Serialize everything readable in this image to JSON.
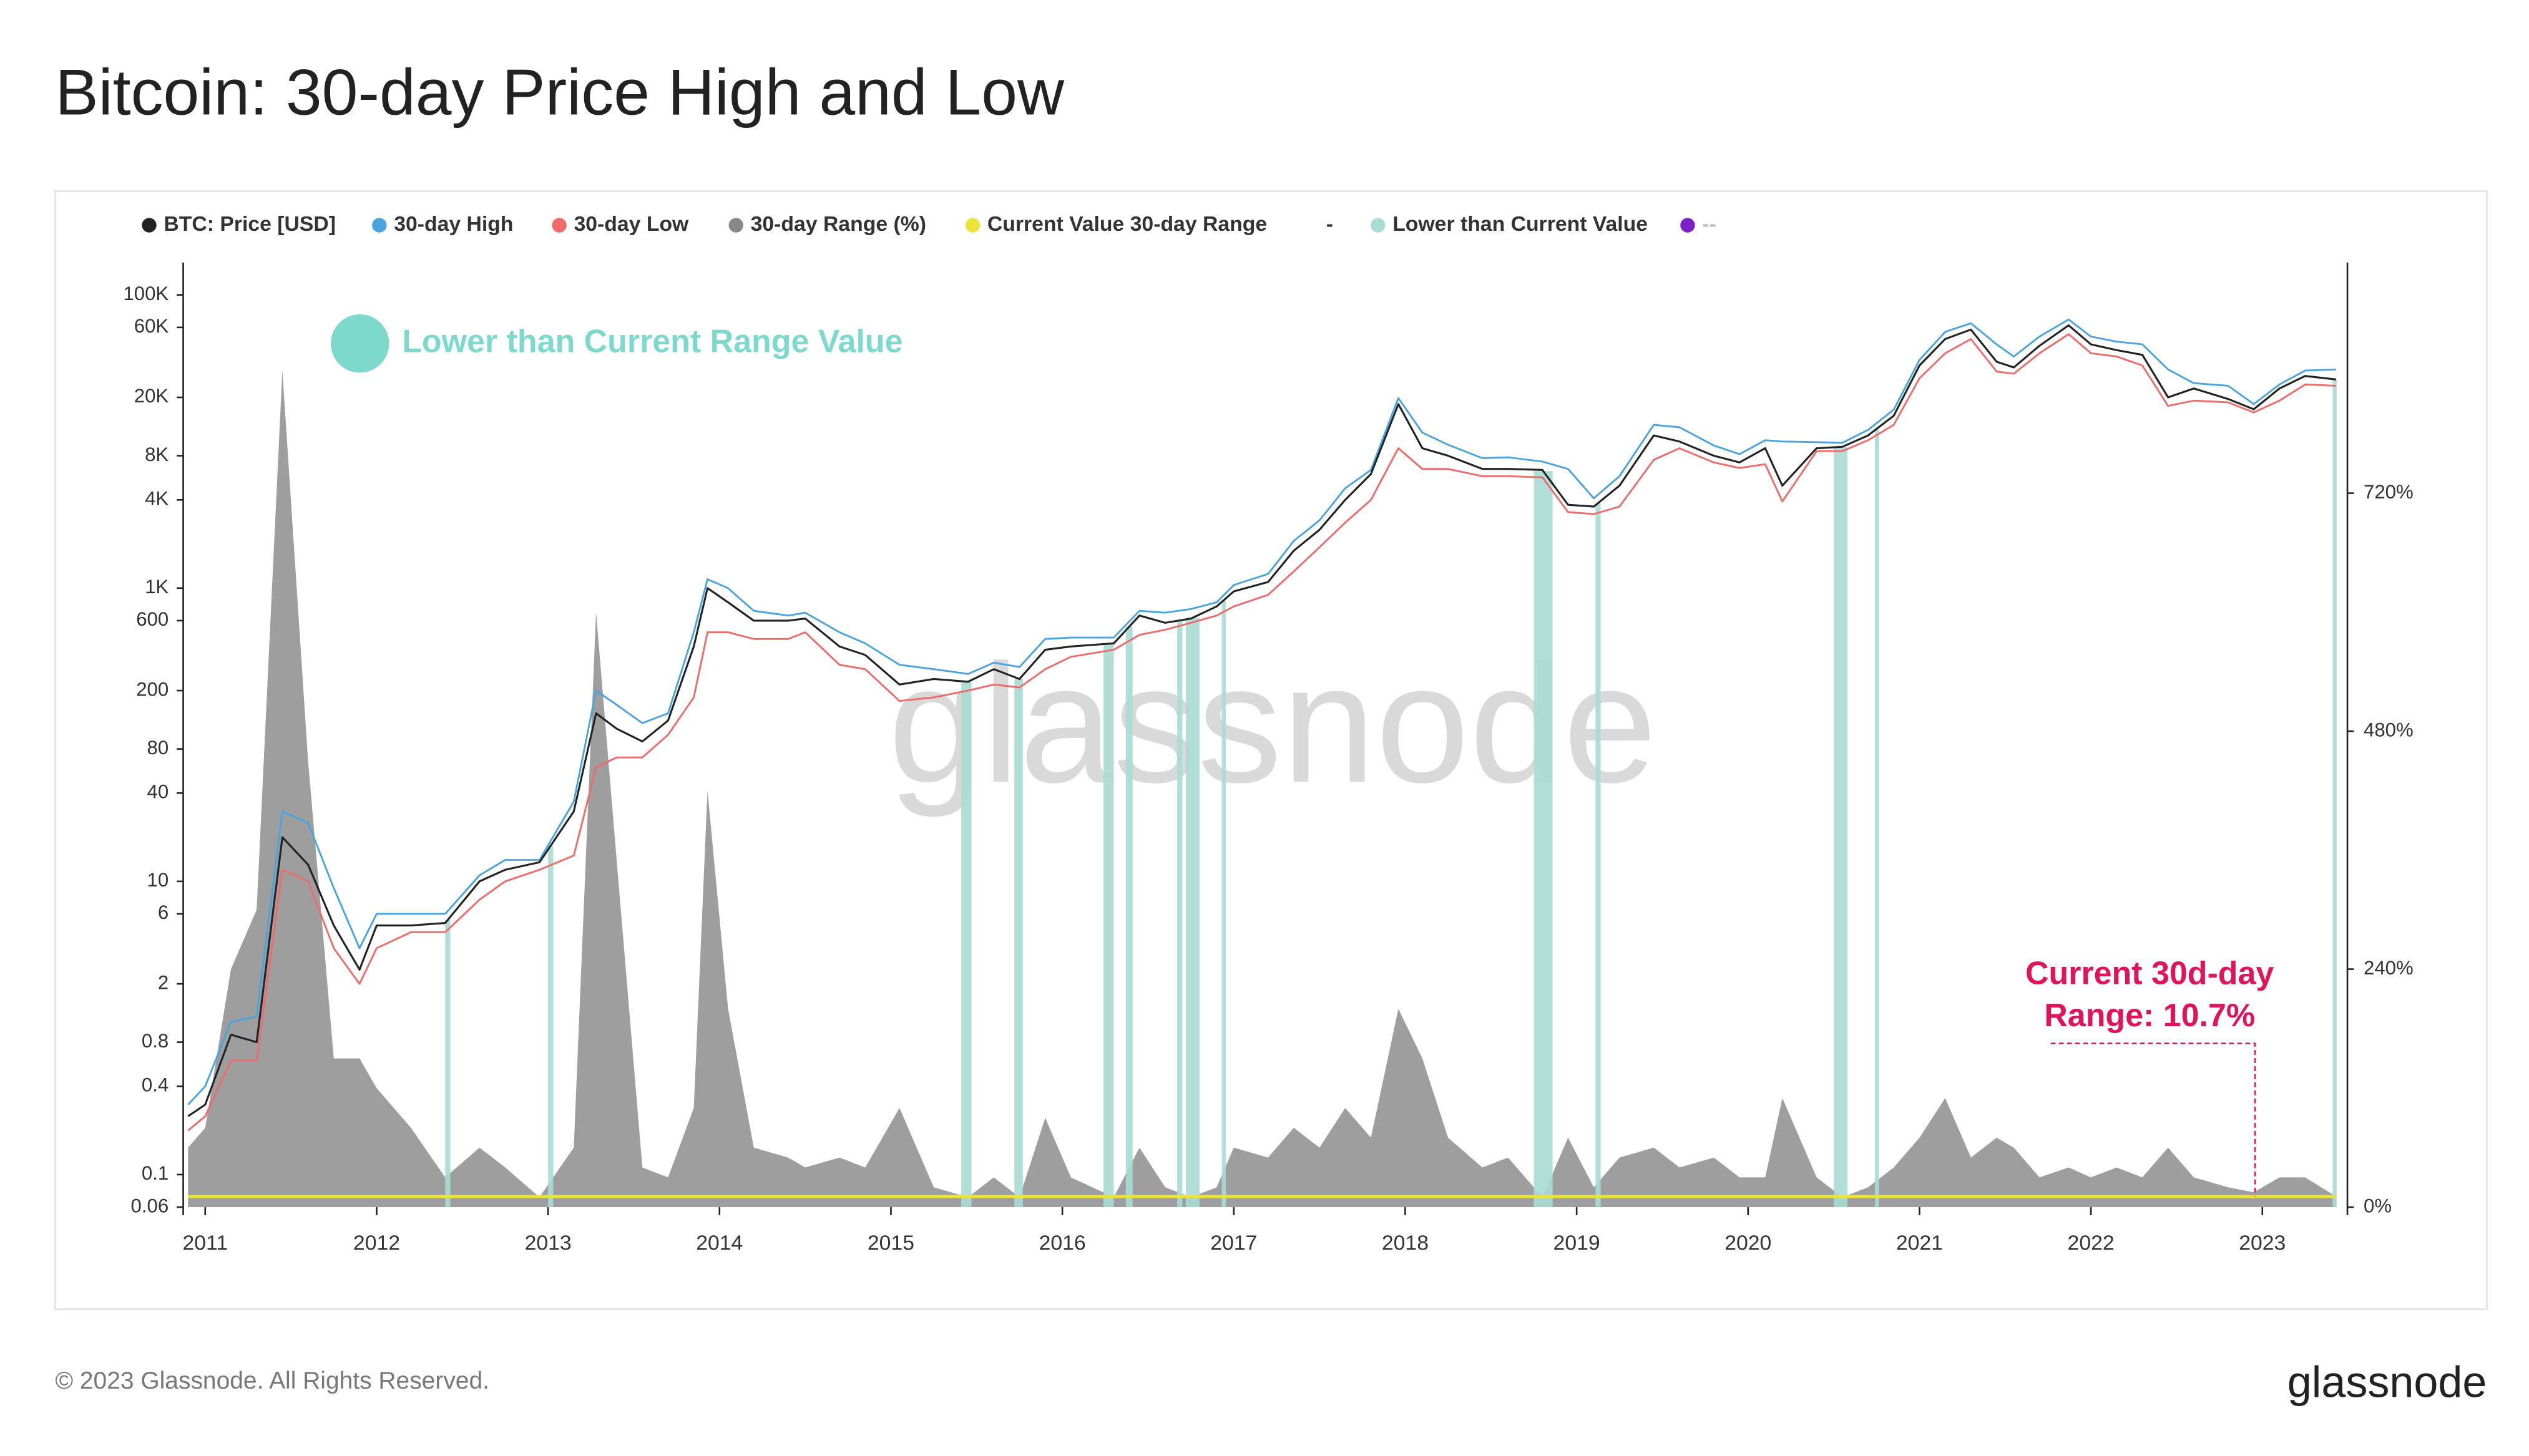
{
  "chart_data": {
    "type": "line",
    "title": "Bitcoin: 30-day Price High and Low",
    "watermark": "glassnode",
    "legend_note": "Lower than Current Range Value",
    "annotation": [
      "Current 30d-day",
      "Range: 10.7%"
    ],
    "x": [
      2010.9,
      2011.0,
      2011.15,
      2011.3,
      2011.45,
      2011.6,
      2011.75,
      2011.9,
      2012.0,
      2012.2,
      2012.4,
      2012.6,
      2012.75,
      2012.95,
      2013.15,
      2013.28,
      2013.4,
      2013.55,
      2013.7,
      2013.85,
      2013.93,
      2014.05,
      2014.2,
      2014.4,
      2014.5,
      2014.7,
      2014.85,
      2015.05,
      2015.25,
      2015.45,
      2015.6,
      2015.75,
      2015.9,
      2016.05,
      2016.3,
      2016.45,
      2016.6,
      2016.75,
      2016.9,
      2017.0,
      2017.2,
      2017.35,
      2017.5,
      2017.65,
      2017.8,
      2017.96,
      2018.1,
      2018.25,
      2018.45,
      2018.6,
      2018.8,
      2018.95,
      2019.1,
      2019.25,
      2019.45,
      2019.6,
      2019.8,
      2019.95,
      2020.1,
      2020.2,
      2020.4,
      2020.55,
      2020.7,
      2020.85,
      2021.0,
      2021.15,
      2021.3,
      2021.45,
      2021.55,
      2021.7,
      2021.87,
      2022.0,
      2022.15,
      2022.3,
      2022.45,
      2022.6,
      2022.8,
      2022.95,
      2023.1,
      2023.25,
      2023.43
    ],
    "series": [
      {
        "name": "BTC: Price [USD]",
        "color": "#222222",
        "values": [
          0.25,
          0.3,
          0.9,
          0.8,
          20,
          13,
          5,
          2.5,
          5,
          5,
          5.2,
          10,
          12,
          13.5,
          30,
          140,
          110,
          90,
          125,
          400,
          1000,
          800,
          600,
          600,
          620,
          400,
          350,
          220,
          240,
          230,
          280,
          240,
          380,
          400,
          420,
          650,
          580,
          620,
          750,
          950,
          1100,
          1800,
          2500,
          4000,
          6000,
          18000,
          9000,
          8000,
          6500,
          6500,
          6400,
          3700,
          3600,
          5000,
          11000,
          10000,
          8000,
          7200,
          9000,
          5000,
          9000,
          9200,
          11000,
          15000,
          33000,
          50000,
          58000,
          35000,
          32000,
          45000,
          62000,
          46000,
          42000,
          39000,
          20000,
          23000,
          19500,
          16600,
          23000,
          28000,
          26500
        ]
      },
      {
        "name": "30-day High",
        "color": "#4aa3df",
        "values": [
          0.3,
          0.4,
          1.1,
          1.2,
          30,
          25,
          9,
          3.5,
          6,
          6,
          6,
          11,
          14,
          14,
          35,
          200,
          160,
          120,
          140,
          500,
          1150,
          1000,
          700,
          650,
          680,
          500,
          420,
          300,
          280,
          260,
          310,
          290,
          450,
          460,
          460,
          700,
          680,
          720,
          800,
          1050,
          1250,
          2100,
          2900,
          4800,
          6400,
          19800,
          11500,
          9500,
          7700,
          7800,
          7300,
          6500,
          4100,
          5800,
          13000,
          12500,
          9400,
          8200,
          10200,
          10000,
          9900,
          9800,
          12000,
          16500,
          36000,
          56000,
          64000,
          46000,
          38000,
          52000,
          68000,
          52000,
          48000,
          46000,
          31000,
          25000,
          24000,
          18000,
          24500,
          30500,
          31000
        ]
      },
      {
        "name": "30-day Low",
        "color": "#f06a6a",
        "values": [
          0.2,
          0.25,
          0.6,
          0.6,
          12,
          10,
          3.5,
          2,
          3.5,
          4.5,
          4.5,
          7.5,
          10,
          12,
          15,
          60,
          70,
          70,
          100,
          180,
          500,
          500,
          450,
          450,
          500,
          300,
          280,
          170,
          180,
          200,
          220,
          210,
          280,
          340,
          380,
          480,
          520,
          580,
          650,
          750,
          900,
          1300,
          1900,
          2800,
          4000,
          9000,
          6500,
          6500,
          5800,
          5800,
          5700,
          3300,
          3200,
          3600,
          7500,
          9000,
          7200,
          6600,
          7000,
          3900,
          8600,
          8600,
          10200,
          13000,
          27000,
          40000,
          50000,
          30000,
          29000,
          40000,
          54000,
          40000,
          38000,
          33000,
          17500,
          19000,
          18500,
          15800,
          19000,
          24500,
          24000
        ]
      },
      {
        "name": "30-day Range (%)",
        "color": "#999999",
        "axis": "y2",
        "values": [
          60,
          80,
          240,
          300,
          844,
          450,
          150,
          150,
          120,
          80,
          30,
          60,
          40,
          10,
          60,
          600,
          350,
          40,
          30,
          100,
          420,
          200,
          60,
          50,
          40,
          50,
          40,
          100,
          20,
          10,
          30,
          10,
          90,
          30,
          10,
          60,
          20,
          10,
          20,
          60,
          50,
          80,
          60,
          100,
          70,
          200,
          150,
          70,
          40,
          50,
          10,
          70,
          20,
          50,
          60,
          40,
          50,
          30,
          30,
          110,
          30,
          10,
          20,
          40,
          70,
          110,
          50,
          70,
          60,
          30,
          40,
          30,
          40,
          30,
          60,
          30,
          20,
          15,
          30,
          30,
          10.7
        ]
      },
      {
        "name": "Current Value 30-day Range",
        "color": "#ece33a",
        "axis": "y2",
        "value": 10.7
      },
      {
        "name": "-"
      },
      {
        "name": "Lower than Current Value",
        "color": "#a8dcd4",
        "ranges": [
          [
            2012.4,
            2012.43
          ],
          [
            2013.0,
            2013.03
          ],
          [
            2015.41,
            2015.47
          ],
          [
            2015.72,
            2015.77
          ],
          [
            2016.24,
            2016.3
          ],
          [
            2016.37,
            2016.41
          ],
          [
            2016.67,
            2016.7
          ],
          [
            2016.72,
            2016.8
          ],
          [
            2016.93,
            2016.95
          ],
          [
            2018.75,
            2018.86
          ],
          [
            2019.11,
            2019.14
          ],
          [
            2020.5,
            2020.58
          ],
          [
            2020.74,
            2020.76
          ],
          [
            2023.41,
            2023.43
          ]
        ]
      },
      {
        "name": "--",
        "color": "#7a22c8"
      }
    ],
    "xlim": [
      2010.9,
      2023.43
    ],
    "xticks": [
      2011,
      2012,
      2013,
      2014,
      2015,
      2016,
      2017,
      2018,
      2019,
      2020,
      2021,
      2022,
      2023
    ],
    "yscale": "log",
    "ylim": [
      0.06,
      100000
    ],
    "yticks": [
      0.06,
      0.1,
      0.4,
      0.8,
      2,
      6,
      10,
      40,
      80,
      200,
      600,
      {
        "value": 1000,
        "label": "1K"
      },
      {
        "value": 4000,
        "label": "4K"
      },
      {
        "value": 8000,
        "label": "8K"
      },
      {
        "value": 20000,
        "label": "20K"
      },
      {
        "value": 60000,
        "label": "60K"
      },
      {
        "value": 100000,
        "label": "100K"
      }
    ],
    "y2lim": [
      0,
      920
    ],
    "y2ticks": [
      {
        "value": 0,
        "label": "0%"
      },
      {
        "value": 240,
        "label": "240%"
      },
      {
        "value": 480,
        "label": "480%"
      },
      {
        "value": 720,
        "label": "720%"
      }
    ],
    "grid": false,
    "legend": "top"
  },
  "footer": {
    "copyright": "© 2023 Glassnode. All Rights Reserved.",
    "logo": "glassnode"
  }
}
